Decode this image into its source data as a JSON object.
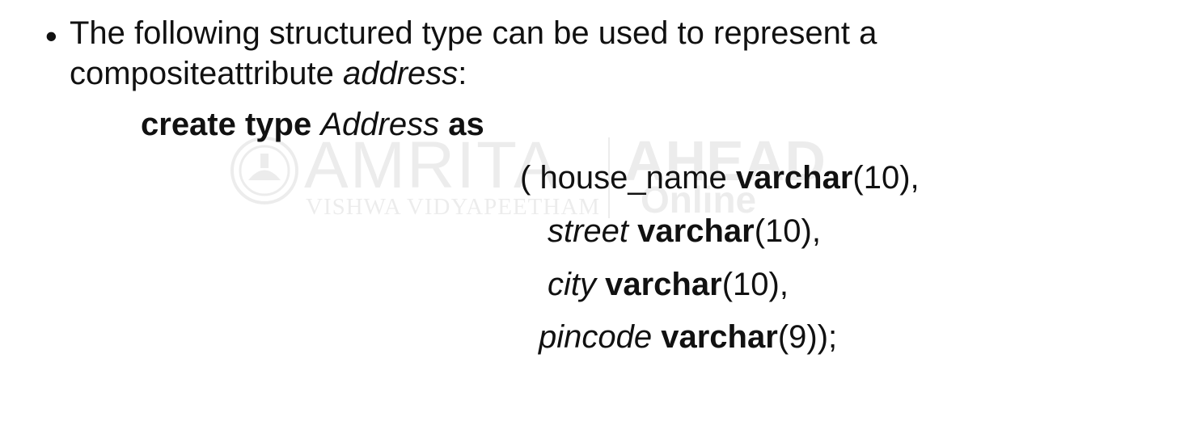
{
  "watermark": {
    "main": "AMRITA",
    "sub": "VISHWA VIDYAPEETHAM",
    "brand": "AHEAD",
    "online": "Online"
  },
  "bullet": {
    "marker": "•",
    "text_before": "The following structured type can be used to represent a compositeattribute ",
    "emphasis": "address",
    "text_after": ":"
  },
  "code": {
    "create_kw": "create type",
    "type_name": "Address",
    "as_kw": "as",
    "open_paren": "(  ",
    "fields": [
      {
        "name": "house_name",
        "type": "varchar",
        "args": "(10),"
      },
      {
        "name": "street",
        "type": "varchar",
        "args": "(10),"
      },
      {
        "name": "city",
        "type": "varchar",
        "args": "(10),"
      },
      {
        "name": "pincode",
        "type": "varchar",
        "args": "(9));"
      }
    ]
  }
}
